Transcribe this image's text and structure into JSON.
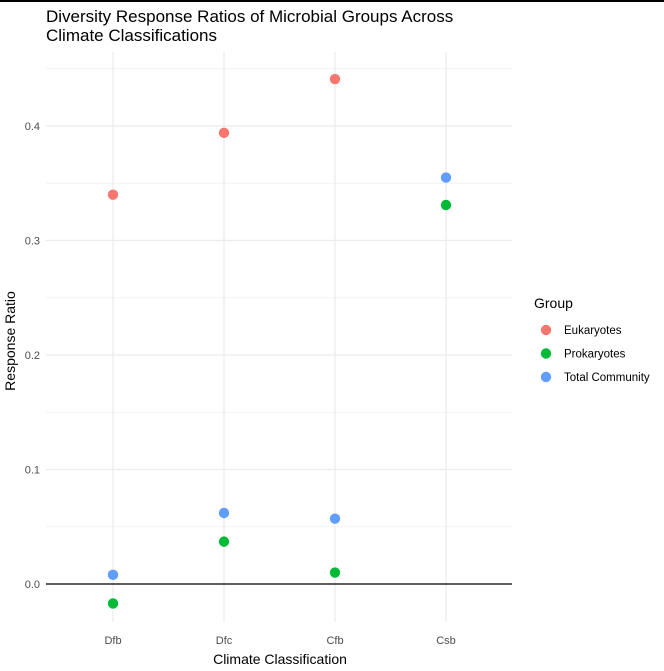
{
  "chart_data": {
    "type": "scatter",
    "title_lines": [
      "Diversity Response Ratios of Microbial Groups Across",
      "Climate Classifications"
    ],
    "xlabel": "Climate Classification",
    "ylabel": "Response Ratio",
    "categories": [
      "Dfb",
      "Dfc",
      "Cfb",
      "Csb"
    ],
    "ylim": [
      -0.038,
      0.463
    ],
    "y_ticks": [
      0.0,
      0.1,
      0.2,
      0.3,
      0.4
    ],
    "y_tick_labels": [
      "0.0",
      "0.1",
      "0.2",
      "0.3",
      "0.4"
    ],
    "grid": true,
    "reference_line_y": 0,
    "legend_title": "Group",
    "legend_position": "right",
    "series": [
      {
        "name": "Eukaryotes",
        "color": "#F8766D",
        "values": [
          0.34,
          0.394,
          0.441,
          null
        ]
      },
      {
        "name": "Prokaryotes",
        "color": "#00BA38",
        "values": [
          -0.017,
          0.037,
          0.01,
          0.331
        ]
      },
      {
        "name": "Total Community",
        "color": "#619CFF",
        "values": [
          0.008,
          0.062,
          0.057,
          0.355
        ]
      }
    ]
  }
}
